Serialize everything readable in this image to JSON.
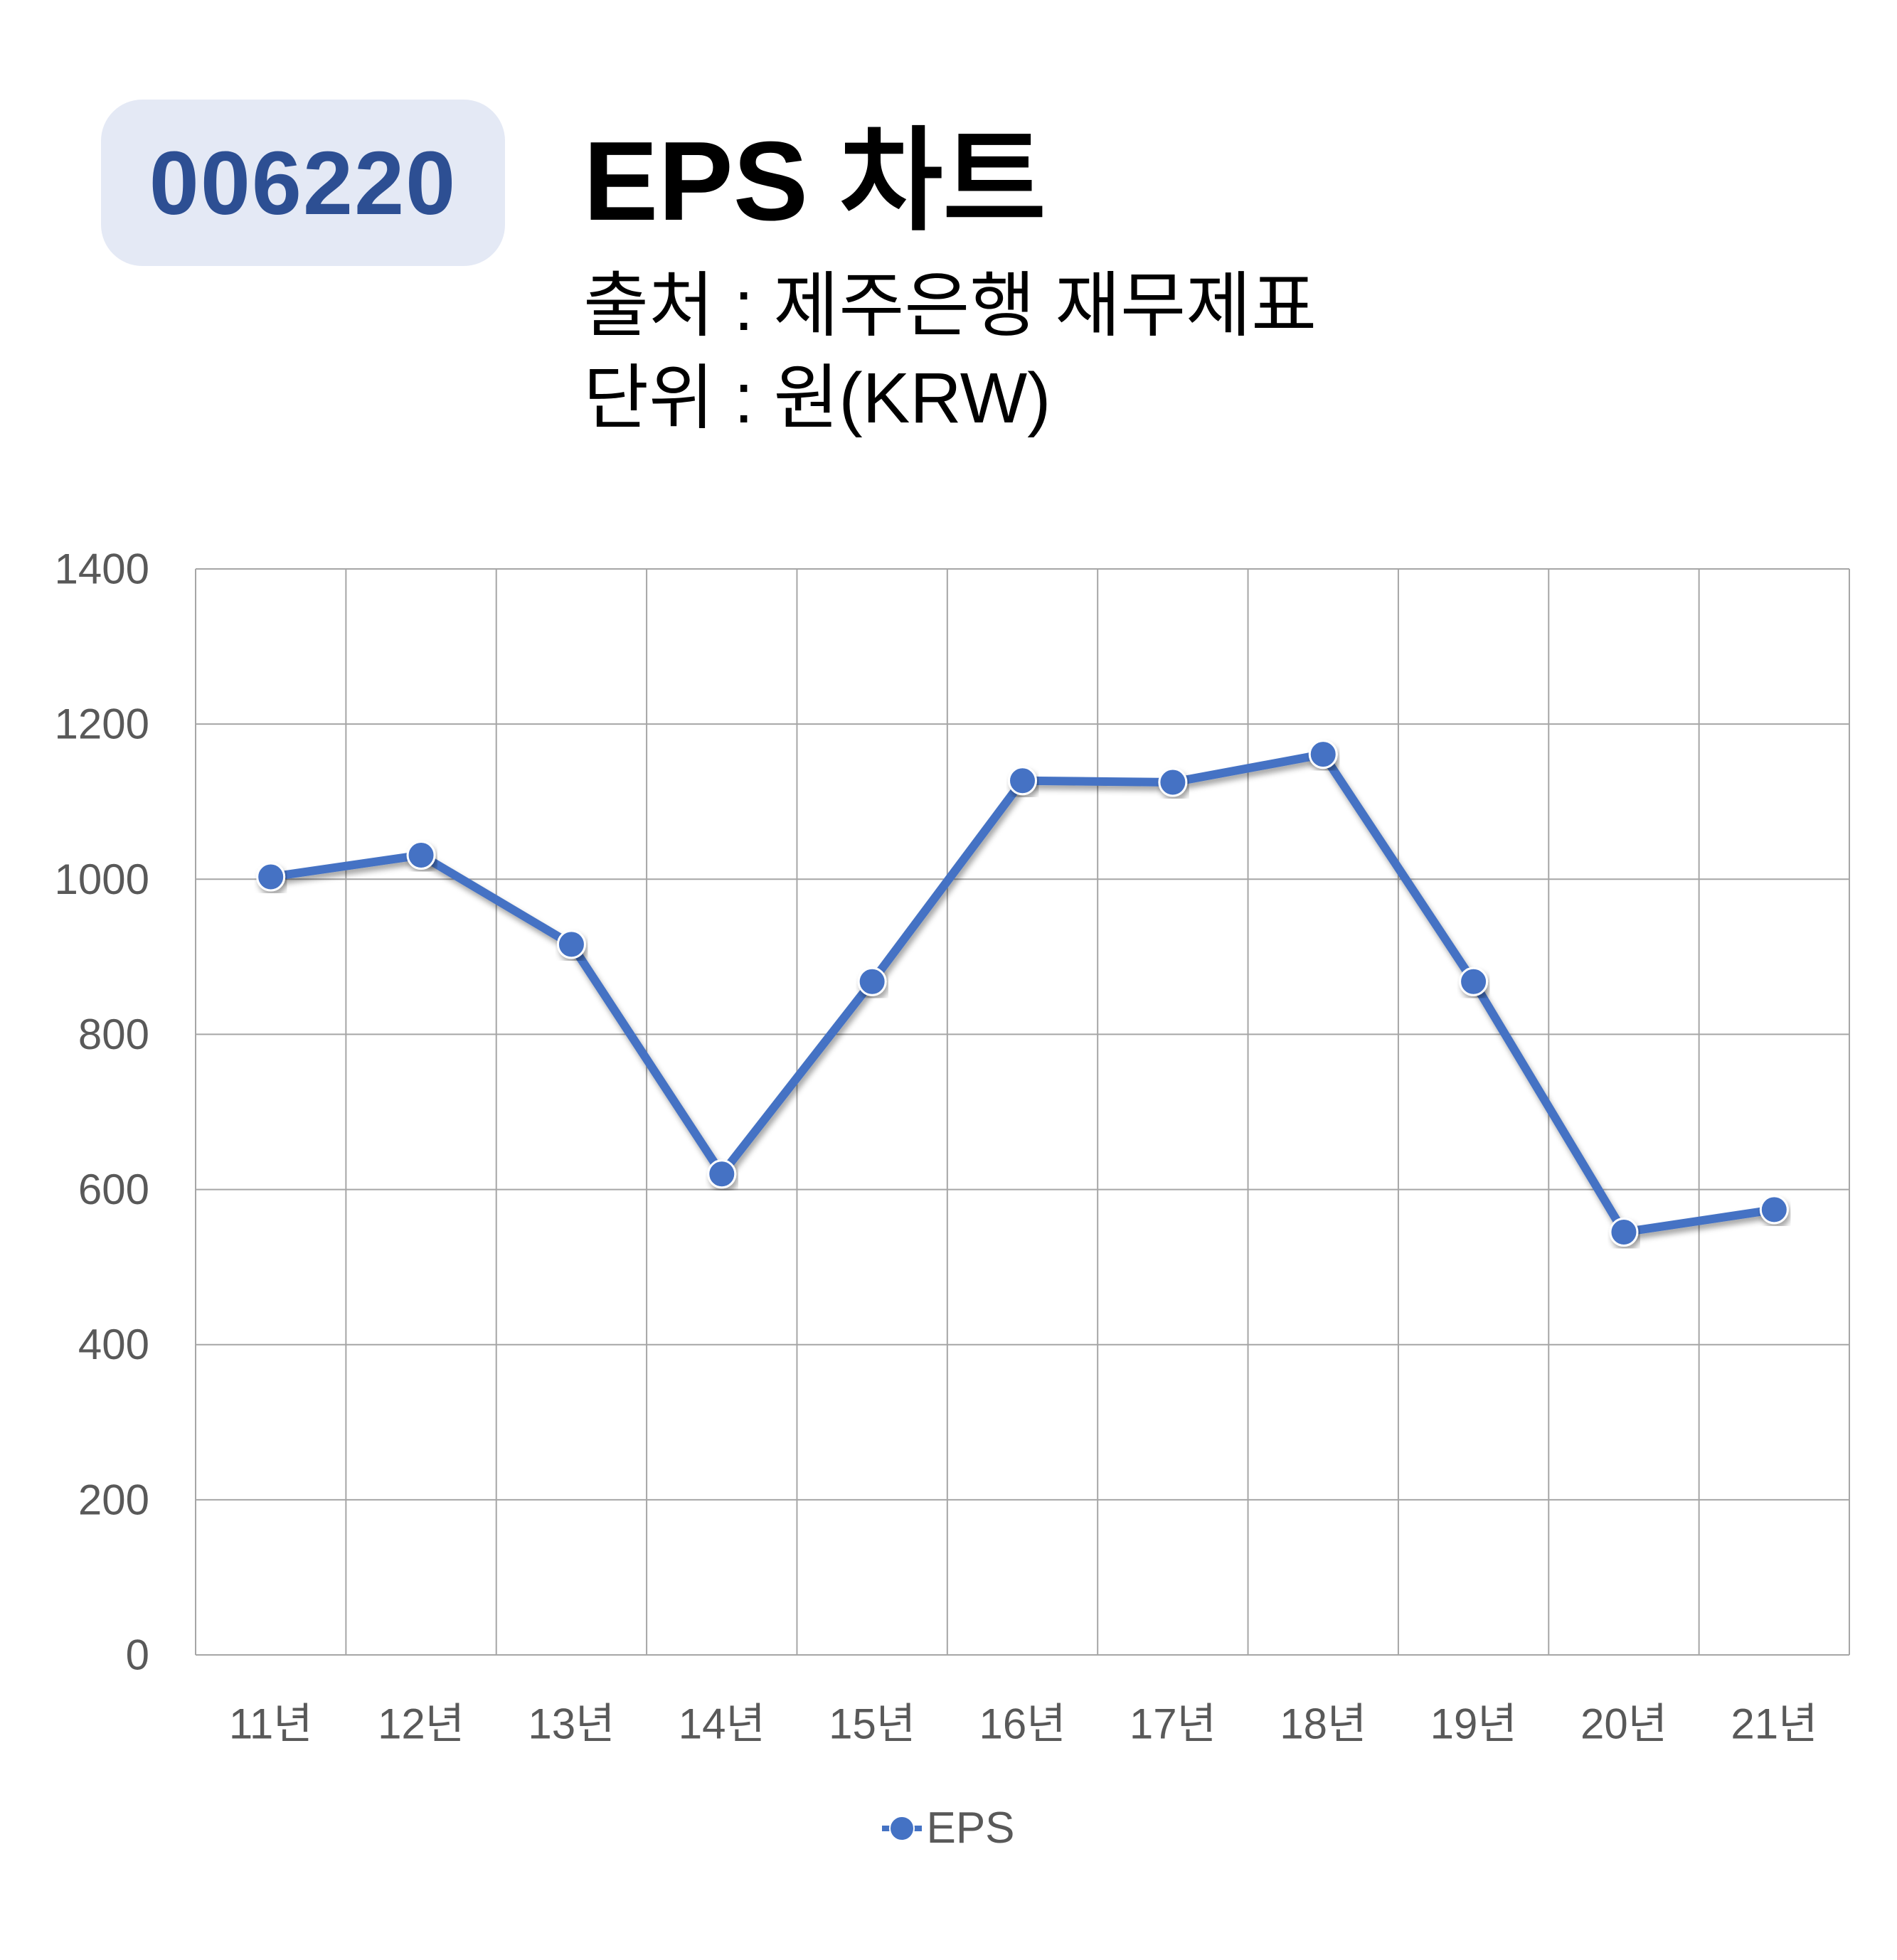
{
  "header": {
    "code": "006220",
    "title": "EPS 차트",
    "source": "출처 : 제주은행 재무제표",
    "unit": "단위 : 원(KRW)"
  },
  "colors": {
    "series": "#4472c4",
    "badge_bg": "#e4e9f5",
    "badge_text": "#2d4f93",
    "grid": "#a6a6a6",
    "tick_text": "#595959"
  },
  "chart_data": {
    "type": "line",
    "title": "EPS 차트",
    "xlabel": "",
    "ylabel": "",
    "categories": [
      "11년",
      "12년",
      "13년",
      "14년",
      "15년",
      "16년",
      "17년",
      "18년",
      "19년",
      "20년",
      "21년"
    ],
    "series": [
      {
        "name": "EPS",
        "values": [
          1003,
          1031,
          916,
          620,
          868,
          1127,
          1125,
          1161,
          868,
          545,
          574
        ]
      }
    ],
    "ylim": [
      0,
      1400
    ],
    "yticks": [
      0,
      200,
      400,
      600,
      800,
      1000,
      1200,
      1400
    ],
    "grid": true,
    "markers": true,
    "legend": "bottom-center"
  }
}
